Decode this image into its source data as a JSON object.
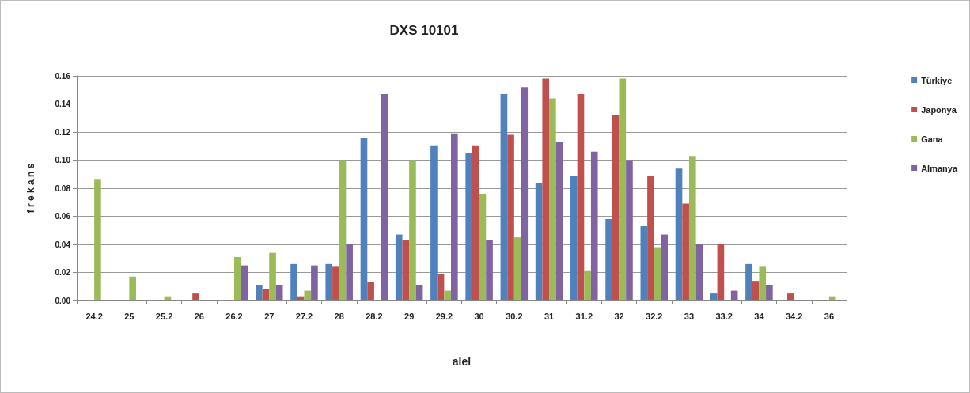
{
  "chart_data": {
    "type": "bar",
    "title": "DXS 10101",
    "xlabel": "alel",
    "ylabel": "f r e k a n s",
    "categories": [
      "24.2",
      "25",
      "25.2",
      "26",
      "26.2",
      "27",
      "27.2",
      "28",
      "28.2",
      "29",
      "29.2",
      "30",
      "30.2",
      "31",
      "31.2",
      "32",
      "32.2",
      "33",
      "33.2",
      "34",
      "34.2",
      "36"
    ],
    "series": [
      {
        "name": "Türkiye",
        "color": "#4f81bd",
        "values": [
          0,
          0,
          0,
          0,
          0,
          0.011,
          0.026,
          0.026,
          0.116,
          0.047,
          0.11,
          0.105,
          0.147,
          0.084,
          0.089,
          0.058,
          0.053,
          0.094,
          0.005,
          0.026,
          0,
          0
        ]
      },
      {
        "name": "Japonya",
        "color": "#c0504d",
        "values": [
          0,
          0,
          0,
          0.005,
          0,
          0.008,
          0.003,
          0.024,
          0.013,
          0.043,
          0.019,
          0.11,
          0.118,
          0.158,
          0.147,
          0.132,
          0.089,
          0.069,
          0.04,
          0.014,
          0.005,
          0
        ]
      },
      {
        "name": "Gana",
        "color": "#9bbb59",
        "values": [
          0.086,
          0.017,
          0.003,
          0,
          0.031,
          0.034,
          0.007,
          0.1,
          0,
          0.1,
          0.007,
          0.076,
          0.045,
          0.144,
          0.021,
          0.158,
          0.038,
          0.103,
          0,
          0.024,
          0,
          0.003
        ]
      },
      {
        "name": "Almanya",
        "color": "#8064a2",
        "values": [
          0,
          0,
          0,
          0,
          0.025,
          0.011,
          0.025,
          0.04,
          0.147,
          0.011,
          0.119,
          0.043,
          0.152,
          0.113,
          0.106,
          0.1,
          0.047,
          0.04,
          0.007,
          0.011,
          0,
          0
        ]
      }
    ],
    "ylim": [
      0,
      0.16
    ],
    "yticks": [
      {
        "value": 0,
        "label": "0.00"
      },
      {
        "value": 0.02,
        "label": "0.02"
      },
      {
        "value": 0.04,
        "label": "0.04"
      },
      {
        "value": 0.06,
        "label": "0.06"
      },
      {
        "value": 0.08,
        "label": "0.08"
      },
      {
        "value": 0.1,
        "label": "0.10"
      },
      {
        "value": 0.12,
        "label": "0.12"
      },
      {
        "value": 0.14,
        "label": "0.14"
      },
      {
        "value": 0.16,
        "label": "0.16"
      }
    ],
    "grid": "y",
    "legend": "right"
  }
}
